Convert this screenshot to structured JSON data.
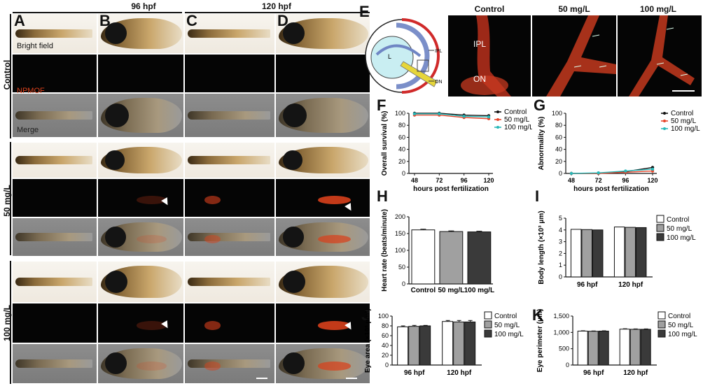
{
  "headers": {
    "col1": "96 hpf",
    "col2": "120 hpf"
  },
  "panel_letters": {
    "A": "A",
    "B": "B",
    "C": "C",
    "D": "D",
    "E": "E",
    "F": "F",
    "G": "G",
    "H": "H",
    "I": "I",
    "J": "J",
    "K": "K"
  },
  "row_labels": {
    "control": "Control",
    "mg50": "50 mg/L",
    "mg100": "100 mg/L"
  },
  "overlay_labels": {
    "bright": "Bright field",
    "npmof": "NPMOF",
    "merge": "Merge"
  },
  "panel_e": {
    "diagram_L": "L",
    "diagram_IPL": "IPL",
    "diagram_ON": "ON",
    "col_control": "Control",
    "col_50": "50 mg/L",
    "col_100": "100 mg/L",
    "img_IPL": "IPL",
    "img_ON": "ON"
  },
  "colors": {
    "control": "#111111",
    "mg50": "#e8442a",
    "mg100": "#27b8b8",
    "bar_control": "#ffffff",
    "bar_50": "#a0a0a0",
    "bar_100": "#3a3a3a",
    "red_fluor": "#d8401c"
  },
  "chart_data": [
    {
      "id": "F",
      "type": "line",
      "xlabel": "hours post fertilization",
      "ylabel": "Overall survival (%)",
      "x": [
        48,
        72,
        96,
        120
      ],
      "xticks": [
        48,
        72,
        96,
        120
      ],
      "ylim": [
        0,
        100
      ],
      "yticks": [
        0,
        20,
        40,
        60,
        80,
        100
      ],
      "series": [
        {
          "name": "Control",
          "values": [
            100,
            100,
            97,
            96
          ]
        },
        {
          "name": "50 mg/L",
          "values": [
            97,
            97,
            93,
            91
          ]
        },
        {
          "name": "100 mg/L",
          "values": [
            99,
            99,
            95,
            94
          ]
        }
      ],
      "legend": "top-right"
    },
    {
      "id": "G",
      "type": "line",
      "xlabel": "hours post fertilization",
      "ylabel": "Abnormality (%)",
      "x": [
        48,
        72,
        96,
        120
      ],
      "xticks": [
        48,
        72,
        96,
        120
      ],
      "ylim": [
        0,
        100
      ],
      "yticks": [
        0,
        20,
        40,
        60,
        80,
        100
      ],
      "series": [
        {
          "name": "Control",
          "values": [
            0,
            0,
            3,
            10
          ]
        },
        {
          "name": "50 mg/L",
          "values": [
            0,
            0,
            2,
            4
          ]
        },
        {
          "name": "100 mg/L",
          "values": [
            0,
            1,
            4,
            7
          ]
        }
      ],
      "legend": "top-right"
    },
    {
      "id": "H",
      "type": "bar",
      "ylabel": "Heart rate (beats/minute)",
      "categories": [
        "Control",
        "50 mg/L",
        "100 mg/L"
      ],
      "values": [
        161,
        156,
        155
      ],
      "errors": [
        2,
        2,
        2
      ],
      "ylim": [
        0,
        200
      ],
      "yticks": [
        0,
        50,
        100,
        150,
        200
      ]
    },
    {
      "id": "I",
      "type": "bar",
      "ylabel": "Body length (×10³ μm)",
      "categories": [
        "96 hpf",
        "120 hpf"
      ],
      "series": [
        {
          "name": "Control",
          "values": [
            4.05,
            4.25
          ]
        },
        {
          "name": "50 mg/L",
          "values": [
            4.03,
            4.22
          ]
        },
        {
          "name": "100 mg/L",
          "values": [
            4.0,
            4.2
          ]
        }
      ],
      "ylim": [
        0,
        5
      ],
      "yticks": [
        0,
        1,
        2,
        3,
        4,
        5
      ],
      "legend": "right"
    },
    {
      "id": "J",
      "type": "bar",
      "ylabel": "Eye area (×10³ μm²)",
      "categories": [
        "96 hpf",
        "120 hpf"
      ],
      "series": [
        {
          "name": "Control",
          "values": [
            78,
            89
          ],
          "errors": [
            2,
            2
          ]
        },
        {
          "name": "50 mg/L",
          "values": [
            79,
            88
          ],
          "errors": [
            2,
            3
          ]
        },
        {
          "name": "100 mg/L",
          "values": [
            80,
            88
          ],
          "errors": [
            1,
            3
          ]
        }
      ],
      "ylim": [
        0,
        100
      ],
      "yticks": [
        0,
        20,
        40,
        60,
        80,
        100
      ],
      "legend": "right"
    },
    {
      "id": "K",
      "type": "bar",
      "ylabel": "Eye perimeter (μm)",
      "categories": [
        "96 hpf",
        "120 hpf"
      ],
      "series": [
        {
          "name": "Control",
          "values": [
            1040,
            1100
          ],
          "errors": [
            10,
            12
          ]
        },
        {
          "name": "50 mg/L",
          "values": [
            1035,
            1095
          ],
          "errors": [
            10,
            12
          ]
        },
        {
          "name": "100 mg/L",
          "values": [
            1040,
            1095
          ],
          "errors": [
            10,
            12
          ]
        }
      ],
      "ylim": [
        0,
        1500
      ],
      "yticks": [
        0,
        500,
        1000,
        1500
      ],
      "yticklabels": [
        "0",
        "500",
        "1,000",
        "1,500"
      ],
      "legend": "right"
    }
  ]
}
